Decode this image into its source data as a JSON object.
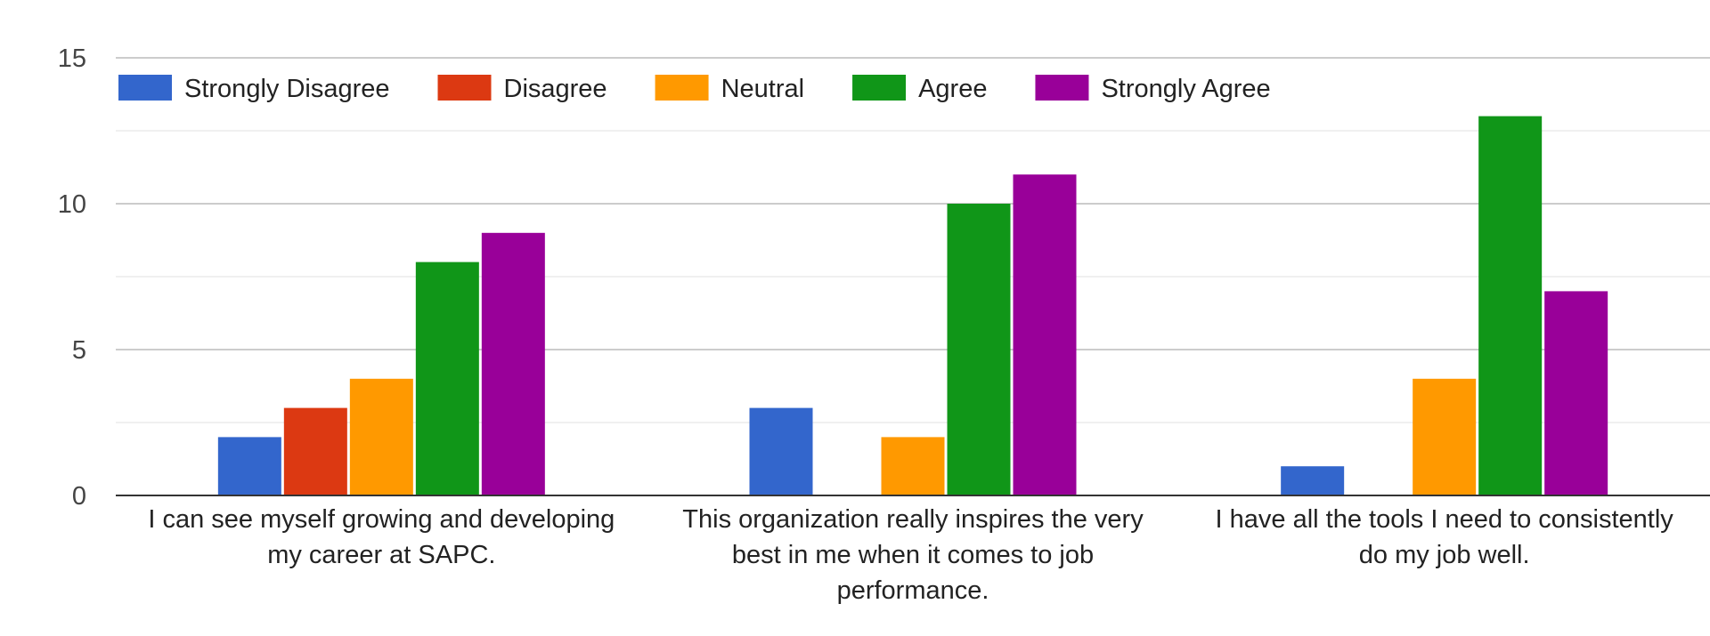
{
  "chart_data": {
    "type": "bar",
    "title": "",
    "xlabel": "",
    "ylabel": "",
    "ylim": [
      0,
      15
    ],
    "yticks": [
      0,
      5,
      10,
      15
    ],
    "grid": true,
    "legend_position": "top-left",
    "categories": [
      [
        "I can see myself growing and developing",
        "my career at SAPC."
      ],
      [
        "This organization really inspires the very",
        "best in me when it comes to job",
        "performance."
      ],
      [
        "I have all the tools I need to consistently",
        "do my job well."
      ]
    ],
    "series": [
      {
        "name": "Strongly Disagree",
        "color": "#3366cc",
        "values": [
          2,
          3,
          1
        ]
      },
      {
        "name": "Disagree",
        "color": "#dc3912",
        "values": [
          3,
          0,
          0
        ]
      },
      {
        "name": "Neutral",
        "color": "#ff9900",
        "values": [
          4,
          2,
          4
        ]
      },
      {
        "name": "Agree",
        "color": "#109618",
        "values": [
          8,
          10,
          13
        ]
      },
      {
        "name": "Strongly Agree",
        "color": "#990099",
        "values": [
          9,
          11,
          7
        ]
      }
    ]
  }
}
